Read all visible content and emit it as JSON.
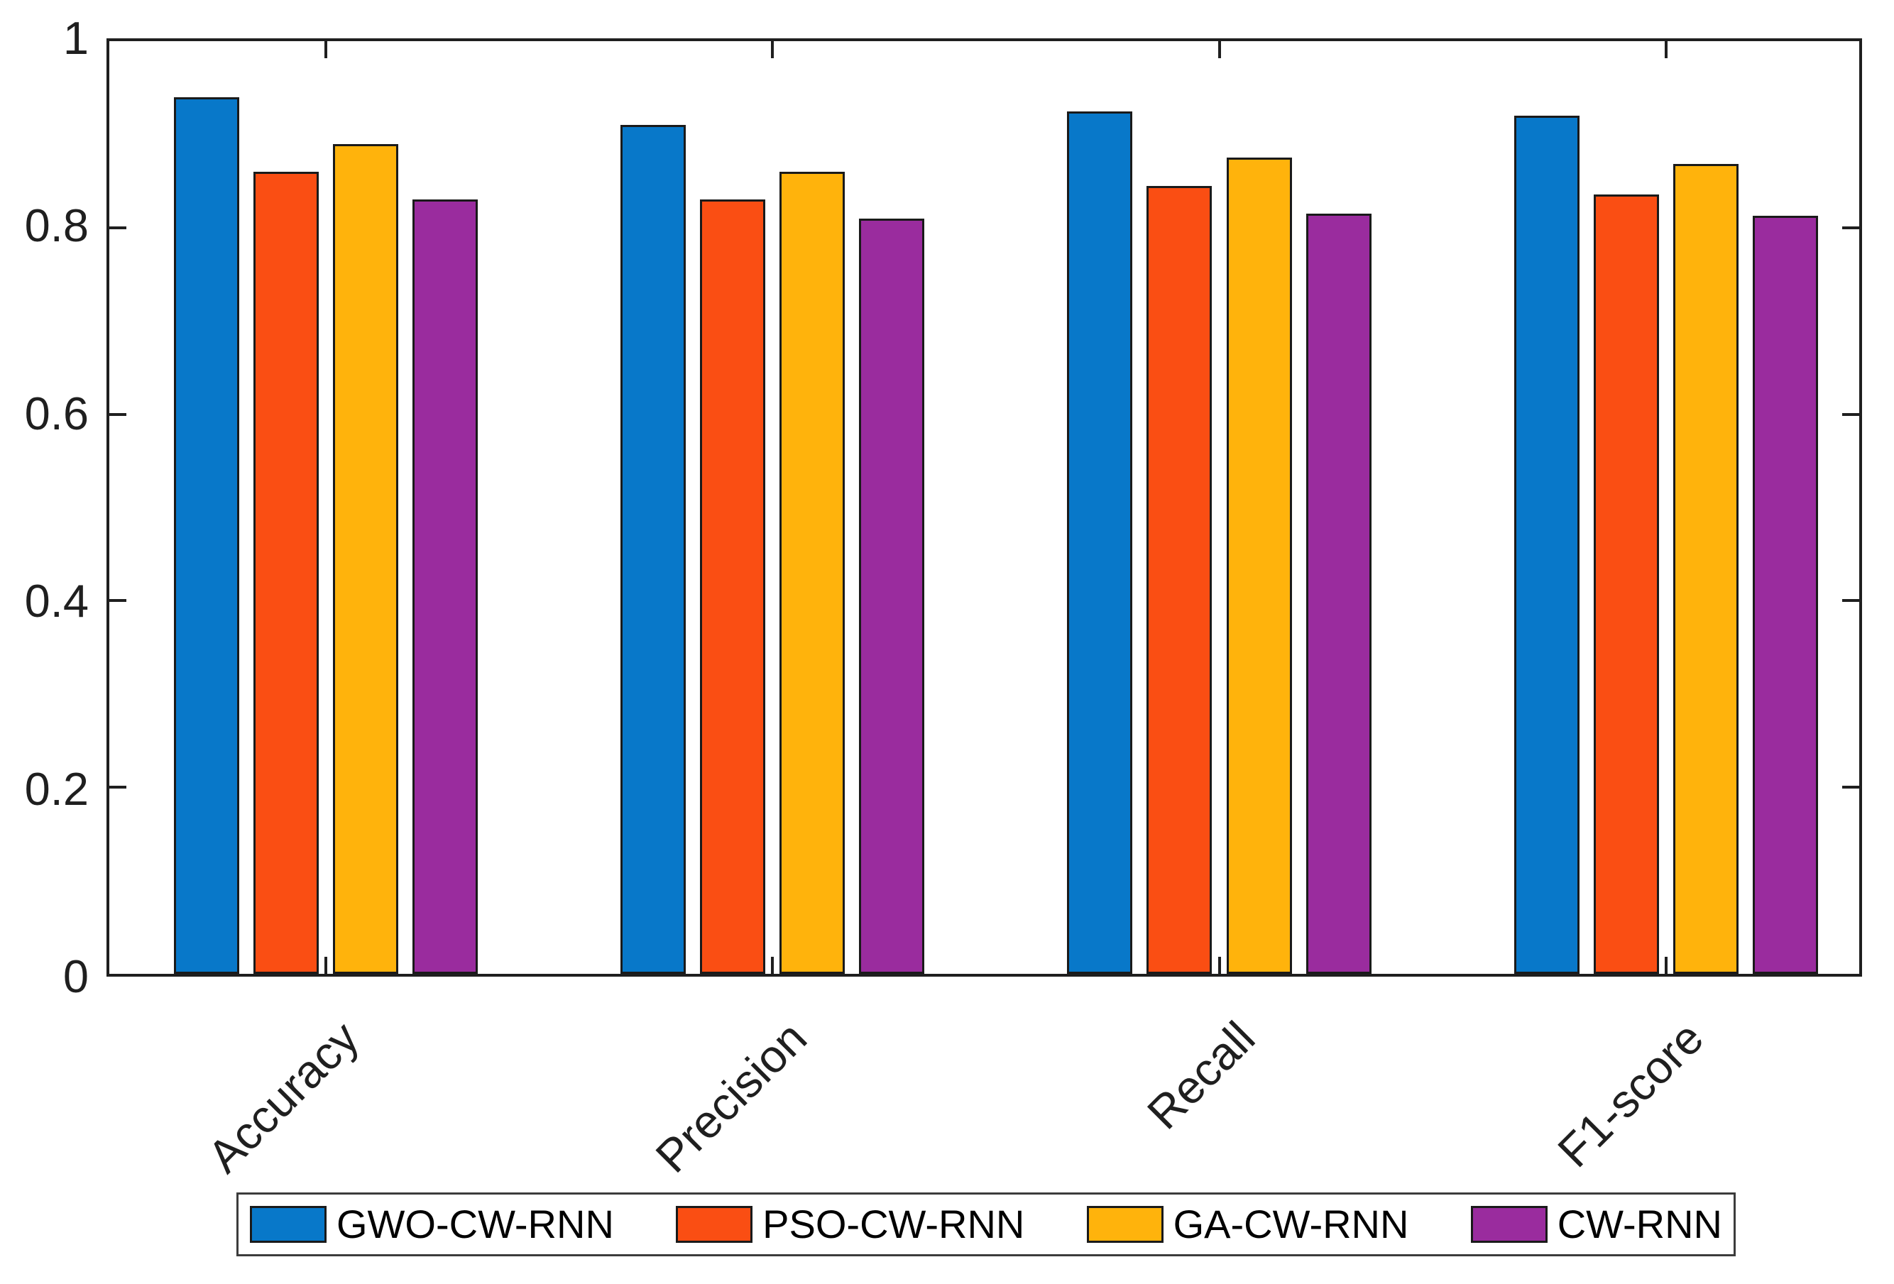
{
  "figure": {
    "background_color": "#ffffff",
    "axis_color": "#1f1f1f",
    "tick_label_color": "#1f1f1f"
  },
  "chart_data": {
    "type": "bar",
    "title": "",
    "xlabel": "",
    "ylabel": "",
    "categories": [
      "Accuracy",
      "Precision",
      "Recall",
      "F1-score"
    ],
    "series": [
      {
        "name": "GWO-CW-RNN",
        "color": "#0878c9",
        "values": [
          0.94,
          0.91,
          0.925,
          0.92
        ]
      },
      {
        "name": "PSO-CW-RNN",
        "color": "#fa4e13",
        "values": [
          0.86,
          0.83,
          0.845,
          0.836
        ]
      },
      {
        "name": "GA-CW-RNN",
        "color": "#ffb30c",
        "values": [
          0.89,
          0.86,
          0.875,
          0.868
        ]
      },
      {
        "name": "CW-RNN",
        "color": "#9a2c9e",
        "values": [
          0.83,
          0.81,
          0.815,
          0.813
        ]
      }
    ],
    "ylim": [
      0,
      1
    ],
    "y_ticks": [
      {
        "value": 0,
        "label": "0"
      },
      {
        "value": 0.2,
        "label": "0.2"
      },
      {
        "value": 0.4,
        "label": "0.4"
      },
      {
        "value": 0.6,
        "label": "0.6"
      },
      {
        "value": 0.8,
        "label": "0.8"
      },
      {
        "value": 1,
        "label": "1"
      }
    ],
    "grid": false,
    "box": true,
    "tick_direction": "in",
    "x_tick_label_rotation_deg": 45,
    "bar_edge_color": "#1a1a1a",
    "legend_position": "below",
    "legend_border_color": "#3c3c3c"
  }
}
